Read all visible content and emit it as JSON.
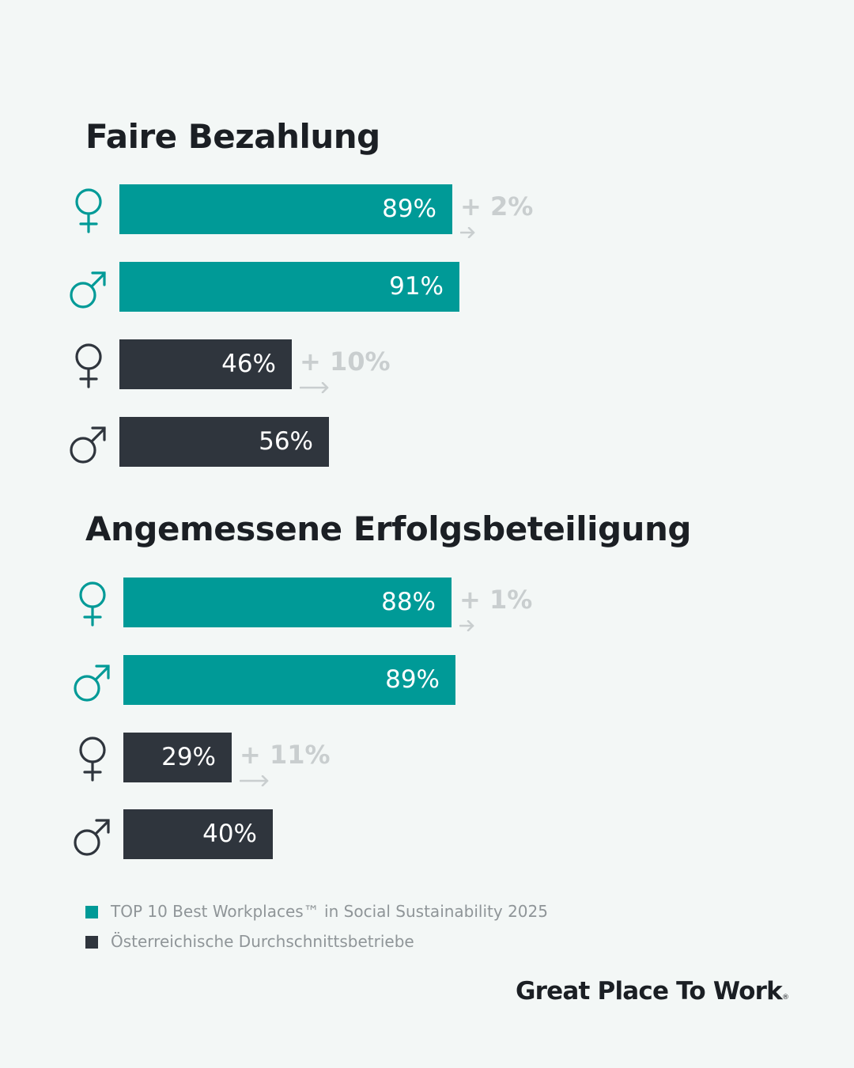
{
  "colors": {
    "background": "#f3f7f6",
    "top10": "#009a97",
    "average": "#2f353d",
    "difference": "#c9cecf",
    "title": "#1b1f24"
  },
  "chart_data": [
    {
      "type": "bar",
      "orientation": "horizontal",
      "title": "Faire Bezahlung",
      "unit": "%",
      "rows": [
        {
          "gender": "female",
          "group": "top10",
          "value": 89,
          "label": "89%",
          "diff": "+ 2%"
        },
        {
          "gender": "male",
          "group": "top10",
          "value": 91,
          "label": "91%"
        },
        {
          "gender": "female",
          "group": "average",
          "value": 46,
          "label": "46%",
          "diff": "+ 10%"
        },
        {
          "gender": "male",
          "group": "average",
          "value": 56,
          "label": "56%"
        }
      ]
    },
    {
      "type": "bar",
      "orientation": "horizontal",
      "title": "Angemessene Erfolgsbeteiligung",
      "unit": "%",
      "rows": [
        {
          "gender": "female",
          "group": "top10",
          "value": 88,
          "label": "88%",
          "diff": "+ 1%"
        },
        {
          "gender": "male",
          "group": "top10",
          "value": 89,
          "label": "89%"
        },
        {
          "gender": "female",
          "group": "average",
          "value": 29,
          "label": "29%",
          "diff": "+ 11%"
        },
        {
          "gender": "male",
          "group": "average",
          "value": 40,
          "label": "40%"
        }
      ]
    }
  ],
  "legend": [
    {
      "group": "top10",
      "label": "TOP 10 Best Workplaces™ in Social Sustainability 2025",
      "color": "#009a97"
    },
    {
      "group": "average",
      "label": "Österreichische Durchschnittsbetriebe",
      "color": "#2f353d"
    }
  ],
  "brand": {
    "name": "Great Place To Work",
    "mark": "®"
  }
}
